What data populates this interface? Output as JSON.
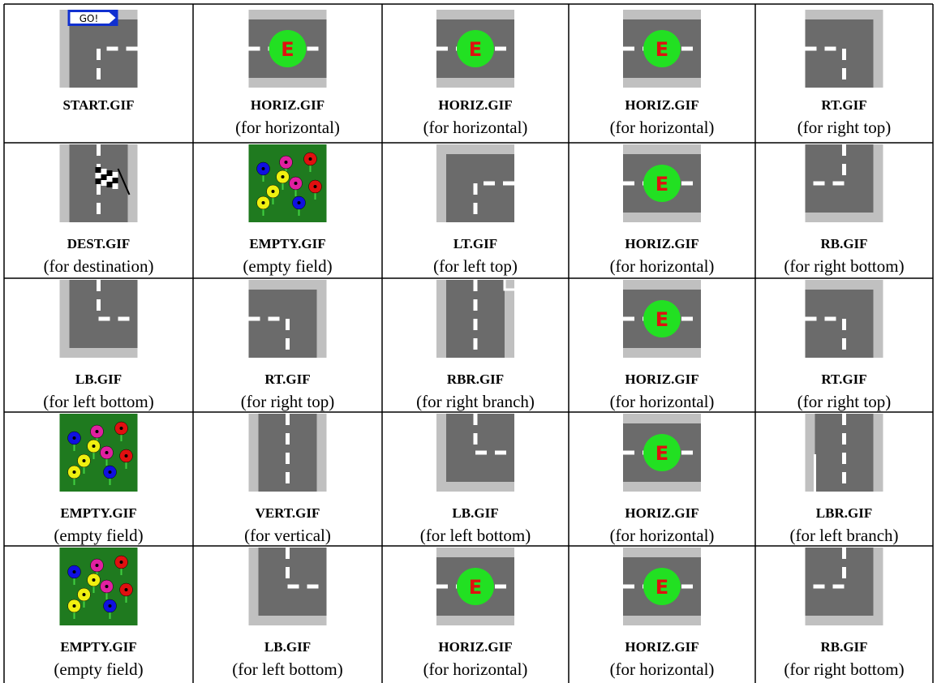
{
  "sign": "GO!",
  "marker": "E",
  "table": {
    "rows": [
      [
        {
          "file": "START.GIF"
        },
        {
          "file": "HORIZ.GIF",
          "caption": "(for horizontal)"
        },
        {
          "file": "HORIZ.GIF",
          "caption": "(for horizontal)"
        },
        {
          "file": "HORIZ.GIF",
          "caption": "(for horizontal)"
        },
        {
          "file": "RT.GIF",
          "caption": "(for right top)"
        }
      ],
      [
        {
          "file": "DEST.GIF",
          "caption": "(for destination)"
        },
        {
          "file": "EMPTY.GIF",
          "caption": "(empty field)"
        },
        {
          "file": "LT.GIF",
          "caption": "(for left top)"
        },
        {
          "file": "HORIZ.GIF",
          "caption": "(for horizontal)"
        },
        {
          "file": "RB.GIF",
          "caption": "(for right bottom)"
        }
      ],
      [
        {
          "file": "LB.GIF",
          "caption": "(for left bottom)"
        },
        {
          "file": "RT.GIF",
          "caption": "(for right top)"
        },
        {
          "file": "RBR.GIF",
          "caption": "(for right branch)"
        },
        {
          "file": "HORIZ.GIF",
          "caption": "(for horizontal)"
        },
        {
          "file": "RT.GIF",
          "caption": "(for right top)"
        }
      ],
      [
        {
          "file": "EMPTY.GIF",
          "caption": "(empty field)"
        },
        {
          "file": "VERT.GIF",
          "caption": "(for vertical)"
        },
        {
          "file": "LB.GIF",
          "caption": "(for left bottom)"
        },
        {
          "file": "HORIZ.GIF",
          "caption": "(for horizontal)"
        },
        {
          "file": "LBR.GIF",
          "caption": "(for left branch)"
        }
      ],
      [
        {
          "file": "EMPTY.GIF",
          "caption": "(empty field)"
        },
        {
          "file": "LB.GIF",
          "caption": "(for left bottom)"
        },
        {
          "file": "HORIZ.GIF",
          "caption": "(for horizontal)"
        },
        {
          "file": "HORIZ.GIF",
          "caption": "(for horizontal)"
        },
        {
          "file": "RB.GIF",
          "caption": "(for right bottom)"
        }
      ]
    ]
  }
}
